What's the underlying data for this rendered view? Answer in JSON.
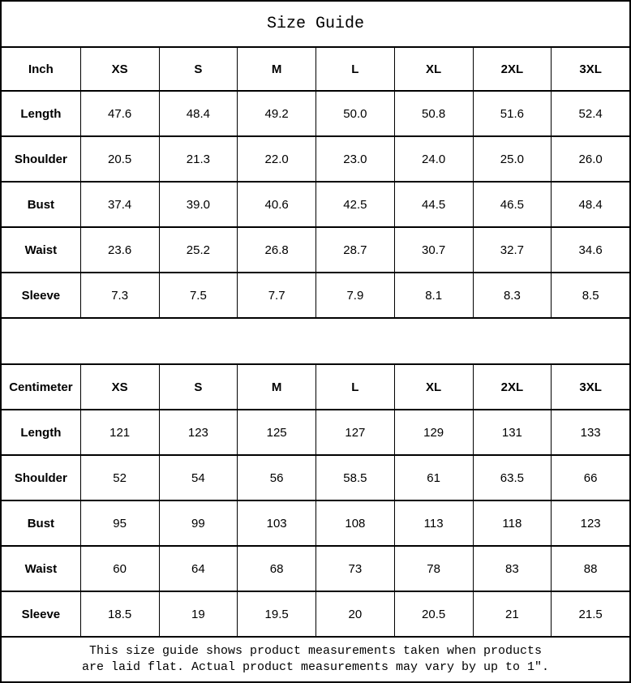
{
  "title": "Size Guide",
  "colors": {
    "border": "#000000",
    "background": "#ffffff",
    "text": "#000000"
  },
  "tables": [
    {
      "unit": "Inch",
      "sizes": [
        "XS",
        "S",
        "M",
        "L",
        "XL",
        "2XL",
        "3XL"
      ],
      "rows": [
        {
          "label": "Length",
          "values": [
            "47.6",
            "48.4",
            "49.2",
            "50.0",
            "50.8",
            "51.6",
            "52.4"
          ]
        },
        {
          "label": "Shoulder",
          "values": [
            "20.5",
            "21.3",
            "22.0",
            "23.0",
            "24.0",
            "25.0",
            "26.0"
          ]
        },
        {
          "label": "Bust",
          "values": [
            "37.4",
            "39.0",
            "40.6",
            "42.5",
            "44.5",
            "46.5",
            "48.4"
          ]
        },
        {
          "label": "Waist",
          "values": [
            "23.6",
            "25.2",
            "26.8",
            "28.7",
            "30.7",
            "32.7",
            "34.6"
          ]
        },
        {
          "label": "Sleeve",
          "values": [
            "7.3",
            "7.5",
            "7.7",
            "7.9",
            "8.1",
            "8.3",
            "8.5"
          ]
        }
      ]
    },
    {
      "unit": "Centimeter",
      "sizes": [
        "XS",
        "S",
        "M",
        "L",
        "XL",
        "2XL",
        "3XL"
      ],
      "rows": [
        {
          "label": "Length",
          "values": [
            "121",
            "123",
            "125",
            "127",
            "129",
            "131",
            "133"
          ]
        },
        {
          "label": "Shoulder",
          "values": [
            "52",
            "54",
            "56",
            "58.5",
            "61",
            "63.5",
            "66"
          ]
        },
        {
          "label": "Bust",
          "values": [
            "95",
            "99",
            "103",
            "108",
            "113",
            "118",
            "123"
          ]
        },
        {
          "label": "Waist",
          "values": [
            "60",
            "64",
            "68",
            "73",
            "78",
            "83",
            "88"
          ]
        },
        {
          "label": "Sleeve",
          "values": [
            "18.5",
            "19",
            "19.5",
            "20",
            "20.5",
            "21",
            "21.5"
          ]
        }
      ]
    }
  ],
  "footer": {
    "line1": "This size guide shows product measurements taken when products",
    "line2": "are laid flat. Actual product measurements may vary by up to 1″."
  }
}
